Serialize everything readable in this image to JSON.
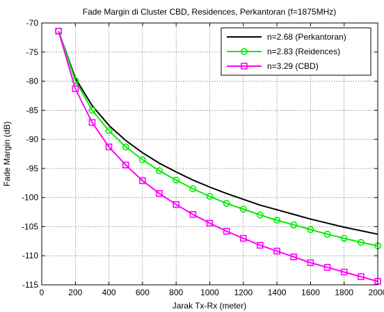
{
  "chart_data": {
    "type": "line",
    "title": "Fade Margin di Cluster CBD, Residences, Perkantoran (f=1875MHz)",
    "xlabel": "Jarak Tx-Rx (meter)",
    "ylabel": "Fade Margin (dB)",
    "xlim": [
      0,
      2000
    ],
    "ylim": [
      -115,
      -70
    ],
    "xticks": [
      0,
      200,
      400,
      600,
      800,
      1000,
      1200,
      1400,
      1600,
      1800,
      2000
    ],
    "yticks": [
      -70,
      -75,
      -80,
      -85,
      -90,
      -95,
      -100,
      -105,
      -110,
      -115
    ],
    "grid": true,
    "legend_position": "top-right",
    "x": [
      100,
      200,
      300,
      400,
      500,
      600,
      700,
      800,
      900,
      1000,
      1100,
      1200,
      1300,
      1400,
      1500,
      1600,
      1700,
      1800,
      1900,
      2000
    ],
    "series": [
      {
        "name": "n=2.68 (Perkantoran)",
        "color": "#000000",
        "marker": "none",
        "values": [
          -71.4,
          -79.5,
          -84.2,
          -87.6,
          -90.2,
          -92.3,
          -94.1,
          -95.6,
          -97.0,
          -98.2,
          -99.3,
          -100.3,
          -101.3,
          -102.1,
          -102.9,
          -103.7,
          -104.4,
          -105.1,
          -105.7,
          -106.3
        ]
      },
      {
        "name": "n=2.83 (Reidences)",
        "color": "#00ee00",
        "marker": "circle",
        "values": [
          -71.4,
          -79.9,
          -85.0,
          -88.5,
          -91.3,
          -93.5,
          -95.4,
          -97.0,
          -98.5,
          -99.8,
          -101.0,
          -102.0,
          -103.0,
          -103.9,
          -104.7,
          -105.5,
          -106.3,
          -107.0,
          -107.7,
          -108.3
        ]
      },
      {
        "name": "n=3.29 (CBD)",
        "color": "#ff00ff",
        "marker": "square",
        "values": [
          -71.4,
          -81.3,
          -87.1,
          -91.3,
          -94.4,
          -97.1,
          -99.3,
          -101.2,
          -102.9,
          -104.4,
          -105.8,
          -107.0,
          -108.2,
          -109.2,
          -110.2,
          -111.2,
          -112.0,
          -112.8,
          -113.6,
          -114.4
        ]
      }
    ]
  }
}
